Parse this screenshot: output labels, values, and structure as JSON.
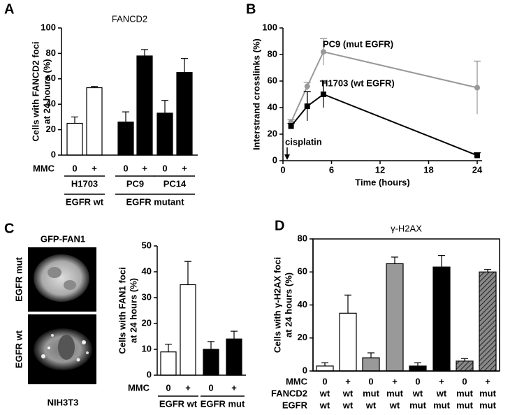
{
  "chart_data": [
    {
      "panel": "A",
      "type": "bar",
      "title": "FANCD2",
      "y_label": [
        "Cells with FANCD2 foci",
        "at 24 hours (%)"
      ],
      "ylim": [
        0,
        100
      ],
      "yticks": [
        0,
        20,
        40,
        60,
        80,
        100
      ],
      "values": [
        25,
        53,
        26,
        78,
        33,
        65
      ],
      "errors": [
        5,
        1,
        8,
        5,
        10,
        11
      ],
      "fills": [
        "white",
        "white",
        "black",
        "black",
        "black",
        "black"
      ],
      "rows": [
        {
          "label": "MMC",
          "values": [
            "0",
            "+",
            "0",
            "+",
            "0",
            "+"
          ]
        }
      ],
      "groups": [
        "H1703",
        "PC9",
        "PC14"
      ],
      "supergroups": [
        "EGFR wt",
        "EGFR mutant"
      ]
    },
    {
      "panel": "B",
      "type": "line",
      "x_label": "Time (hours)",
      "y_label": [
        "Interstrand crosslinks (%)"
      ],
      "xlim": [
        0,
        24
      ],
      "xticks": [
        0,
        6,
        12,
        18,
        24
      ],
      "ylim": [
        0,
        100
      ],
      "yticks": [
        0,
        20,
        40,
        60,
        80,
        100
      ],
      "x": [
        1,
        3,
        5,
        24
      ],
      "series": [
        {
          "name": "PC9 (mut EGFR)",
          "color": "#999999",
          "marker": "circle",
          "values": [
            29,
            56,
            82,
            55
          ],
          "errors": [
            2,
            3,
            10,
            20
          ]
        },
        {
          "name": "H1703 (wt EGFR)",
          "color": "#000000",
          "marker": "square",
          "values": [
            26,
            41,
            50,
            4
          ],
          "errors": [
            2,
            11,
            10,
            2
          ]
        }
      ],
      "annotations": [
        "cisplatin"
      ]
    },
    {
      "panel": "C",
      "type": "bar",
      "image_title": "GFP-FAN1",
      "image_labels": [
        "EGFR mut",
        "EGFR wt"
      ],
      "image_caption": "NIH3T3",
      "y_label": [
        "Cells with FAN1 foci",
        "at 24 hours (%)"
      ],
      "ylim": [
        0,
        50
      ],
      "yticks": [
        0,
        10,
        20,
        30,
        40,
        50
      ],
      "values": [
        9,
        35,
        10,
        14
      ],
      "errors": [
        3,
        9,
        3,
        3
      ],
      "fills": [
        "white",
        "white",
        "black",
        "black"
      ],
      "rows": [
        {
          "label": "MMC",
          "values": [
            "0",
            "+",
            "0",
            "+"
          ]
        }
      ],
      "supergroups": [
        "EGFR wt",
        "EGFR mut"
      ]
    },
    {
      "panel": "D",
      "type": "bar",
      "title": "γ-H2AX",
      "y_label": [
        "Cells with γ-H2AX foci",
        "at 24 hours (%)"
      ],
      "ylim": [
        0,
        80
      ],
      "yticks": [
        0,
        20,
        40,
        60,
        80
      ],
      "values": [
        3,
        35,
        8,
        65,
        3,
        63,
        6,
        60
      ],
      "errors": [
        2,
        11,
        3,
        4,
        2,
        7,
        1.5,
        1.5
      ],
      "fills": [
        "white",
        "white",
        "gray",
        "gray",
        "black",
        "black",
        "hatched",
        "hatched"
      ],
      "rows": [
        {
          "label": "MMC",
          "values": [
            "0",
            "+",
            "0",
            "+",
            "0",
            "+",
            "0",
            "+"
          ]
        },
        {
          "label": "FANCD2",
          "values": [
            "wt",
            "wt",
            "mut",
            "mut",
            "wt",
            "wt",
            "mut",
            "mut"
          ]
        },
        {
          "label": "EGFR",
          "values": [
            "wt",
            "wt",
            "wt",
            "wt",
            "mut",
            "mut",
            "mut",
            "mut"
          ]
        }
      ]
    }
  ]
}
